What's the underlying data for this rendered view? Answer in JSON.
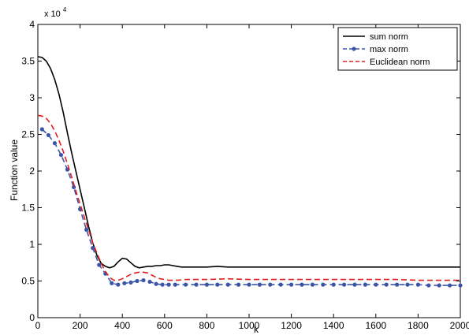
{
  "chart_data": {
    "type": "line",
    "title": "",
    "xlabel": "k",
    "ylabel": "Function value",
    "y_exponent_label": "x 10",
    "y_exponent_power": "4",
    "xlim": [
      0,
      2000
    ],
    "ylim": [
      0,
      4
    ],
    "xticks": [
      0,
      200,
      400,
      600,
      800,
      1000,
      1200,
      1400,
      1600,
      1800,
      2000
    ],
    "yticks": [
      0,
      0.5,
      1,
      1.5,
      2,
      2.5,
      3,
      3.5,
      4
    ],
    "xtick_labels": [
      "0",
      "200",
      "400",
      "600",
      "800",
      "1000",
      "1200",
      "1400",
      "1600",
      "1800",
      "2000"
    ],
    "ytick_labels": [
      "0",
      "0.5",
      "1",
      "1.5",
      "2",
      "2.5",
      "3",
      "3.5",
      "4"
    ],
    "grid": false,
    "legend_position": "top-right",
    "series": [
      {
        "name": "sum norm",
        "color": "#000000",
        "style": "solid",
        "x": [
          0,
          20,
          40,
          60,
          80,
          100,
          120,
          140,
          160,
          180,
          200,
          220,
          240,
          260,
          280,
          300,
          320,
          340,
          360,
          380,
          400,
          420,
          440,
          460,
          480,
          500,
          520,
          540,
          560,
          580,
          600,
          620,
          640,
          660,
          680,
          700,
          750,
          800,
          850,
          900,
          1000,
          1100,
          1200,
          1300,
          1400,
          1500,
          1600,
          1700,
          1800,
          1900,
          2000
        ],
        "y": [
          3.56,
          3.55,
          3.5,
          3.4,
          3.25,
          3.05,
          2.8,
          2.52,
          2.25,
          2.0,
          1.75,
          1.5,
          1.25,
          1.02,
          0.85,
          0.74,
          0.7,
          0.68,
          0.7,
          0.76,
          0.81,
          0.8,
          0.75,
          0.7,
          0.68,
          0.69,
          0.7,
          0.7,
          0.71,
          0.71,
          0.72,
          0.72,
          0.71,
          0.7,
          0.69,
          0.69,
          0.69,
          0.69,
          0.7,
          0.69,
          0.69,
          0.69,
          0.69,
          0.69,
          0.69,
          0.69,
          0.69,
          0.69,
          0.69,
          0.69,
          0.69
        ]
      },
      {
        "name": "max norm",
        "color": "#3a55a8",
        "style": "dashed-dotted",
        "x": [
          20,
          50,
          80,
          110,
          140,
          170,
          200,
          230,
          260,
          290,
          320,
          350,
          380,
          410,
          440,
          470,
          500,
          530,
          560,
          590,
          620,
          650,
          700,
          750,
          800,
          850,
          900,
          950,
          1000,
          1050,
          1100,
          1150,
          1200,
          1250,
          1300,
          1350,
          1400,
          1450,
          1500,
          1550,
          1600,
          1650,
          1700,
          1750,
          1800,
          1850,
          1900,
          1950,
          2000
        ],
        "y": [
          2.57,
          2.49,
          2.38,
          2.22,
          2.02,
          1.78,
          1.48,
          1.2,
          0.95,
          0.72,
          0.6,
          0.47,
          0.45,
          0.47,
          0.48,
          0.5,
          0.51,
          0.49,
          0.46,
          0.45,
          0.45,
          0.45,
          0.45,
          0.45,
          0.45,
          0.45,
          0.45,
          0.45,
          0.45,
          0.45,
          0.45,
          0.45,
          0.45,
          0.45,
          0.45,
          0.45,
          0.45,
          0.45,
          0.45,
          0.45,
          0.45,
          0.45,
          0.45,
          0.45,
          0.45,
          0.44,
          0.44,
          0.44,
          0.44
        ]
      },
      {
        "name": "Euclidean norm",
        "color": "#e02020",
        "style": "dashed",
        "x": [
          0,
          20,
          40,
          60,
          80,
          100,
          120,
          140,
          160,
          180,
          200,
          220,
          240,
          260,
          280,
          300,
          320,
          340,
          360,
          380,
          400,
          420,
          440,
          460,
          480,
          500,
          520,
          540,
          560,
          580,
          600,
          620,
          640,
          660,
          700,
          800,
          900,
          1000,
          1100,
          1200,
          1300,
          1400,
          1500,
          1600,
          1700,
          1800,
          1900,
          2000
        ],
        "y": [
          2.76,
          2.75,
          2.72,
          2.65,
          2.55,
          2.42,
          2.27,
          2.1,
          1.92,
          1.73,
          1.55,
          1.37,
          1.2,
          1.02,
          0.88,
          0.74,
          0.63,
          0.55,
          0.51,
          0.51,
          0.53,
          0.56,
          0.59,
          0.61,
          0.62,
          0.62,
          0.61,
          0.58,
          0.55,
          0.53,
          0.52,
          0.51,
          0.51,
          0.51,
          0.52,
          0.52,
          0.53,
          0.52,
          0.52,
          0.52,
          0.52,
          0.52,
          0.52,
          0.52,
          0.52,
          0.51,
          0.51,
          0.51
        ]
      }
    ]
  }
}
